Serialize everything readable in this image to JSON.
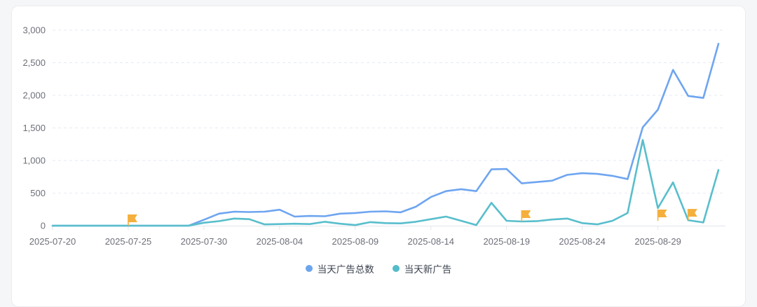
{
  "legend": {
    "items": [
      {
        "label": "当天广告总数",
        "color": "#6ca5ee"
      },
      {
        "label": "当天新广告",
        "color": "#53bccb"
      }
    ]
  },
  "chart_data": {
    "type": "line",
    "title": "",
    "xlabel": "",
    "ylabel": "",
    "ylim": [
      0,
      3000
    ],
    "y_tick_labels": [
      "0",
      "500",
      "1,000",
      "1,500",
      "2,000",
      "2,500",
      "3,000"
    ],
    "x_tick_labels": [
      "2025-07-20",
      "2025-07-25",
      "2025-07-30",
      "2025-08-04",
      "2025-08-09",
      "2025-08-14",
      "2025-08-19",
      "2025-08-24",
      "2025-08-29"
    ],
    "x_label_every": 5,
    "grid": "dashed-horizontal",
    "legend_position": "bottom",
    "x": [
      "2025-07-20",
      "2025-07-21",
      "2025-07-22",
      "2025-07-23",
      "2025-07-24",
      "2025-07-25",
      "2025-07-26",
      "2025-07-27",
      "2025-07-28",
      "2025-07-29",
      "2025-07-30",
      "2025-07-31",
      "2025-08-01",
      "2025-08-02",
      "2025-08-03",
      "2025-08-04",
      "2025-08-05",
      "2025-08-06",
      "2025-08-07",
      "2025-08-08",
      "2025-08-09",
      "2025-08-10",
      "2025-08-11",
      "2025-08-12",
      "2025-08-13",
      "2025-08-14",
      "2025-08-15",
      "2025-08-16",
      "2025-08-17",
      "2025-08-18",
      "2025-08-19",
      "2025-08-20",
      "2025-08-21",
      "2025-08-22",
      "2025-08-23",
      "2025-08-24",
      "2025-08-25",
      "2025-08-26",
      "2025-08-27",
      "2025-08-28",
      "2025-08-29",
      "2025-08-30",
      "2025-08-31",
      "2025-09-01",
      "2025-09-02"
    ],
    "series": [
      {
        "name": "当天广告总数",
        "color": "#6ea5f0",
        "values": [
          0,
          0,
          0,
          0,
          0,
          0,
          0,
          0,
          0,
          0,
          90,
          185,
          215,
          210,
          215,
          245,
          140,
          150,
          145,
          185,
          195,
          215,
          220,
          205,
          290,
          440,
          530,
          560,
          530,
          865,
          870,
          650,
          670,
          690,
          780,
          805,
          795,
          765,
          715,
          1510,
          1780,
          2390,
          1990,
          1960,
          2790
        ]
      },
      {
        "name": "当天新广告",
        "color": "#58becc",
        "values": [
          0,
          0,
          0,
          0,
          0,
          0,
          0,
          0,
          0,
          0,
          45,
          70,
          110,
          100,
          20,
          25,
          30,
          25,
          60,
          30,
          10,
          55,
          40,
          35,
          60,
          100,
          140,
          75,
          10,
          350,
          75,
          65,
          70,
          95,
          110,
          40,
          20,
          75,
          195,
          1315,
          270,
          665,
          85,
          50,
          855
        ]
      }
    ],
    "flags": [
      {
        "date": "2025-07-25",
        "anchor_value": 0
      },
      {
        "date": "2025-08-20",
        "anchor_value": 65
      },
      {
        "date": "2025-08-29",
        "anchor_value": 75
      },
      {
        "date": "2025-08-31",
        "anchor_value": 85
      }
    ],
    "flag_color": "#f5af3c"
  }
}
